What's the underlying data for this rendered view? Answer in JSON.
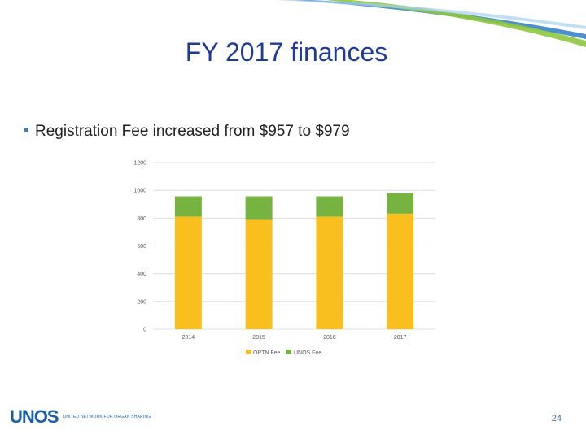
{
  "slide": {
    "title": "FY 2017 finances",
    "bullet": "Registration Fee increased from $957 to $979",
    "page_number": "24",
    "logo_text": "UNOS",
    "logo_tagline": "UNITED NETWORK FOR ORGAN SHARING"
  },
  "colors": {
    "title": "#1f3b9a",
    "optn": "#f9bf1e",
    "unos": "#76b340",
    "swoosh_blue": "#2d7cc4",
    "swoosh_green": "#8dc63f"
  },
  "chart_data": {
    "type": "bar",
    "stacked": true,
    "categories": [
      "2014",
      "2015",
      "2016",
      "2017"
    ],
    "series": [
      {
        "name": "OPTN Fee",
        "values": [
          811,
          792,
          811,
          832
        ],
        "color": "#f9bf1e"
      },
      {
        "name": "UNOS Fee",
        "values": [
          146,
          165,
          146,
          147
        ],
        "color": "#76b340"
      }
    ],
    "ylim": [
      0,
      1200
    ],
    "yticks": [
      "0",
      "200",
      "400",
      "600",
      "800",
      "1000",
      "1200"
    ],
    "grid": true,
    "legend_position": "bottom",
    "title": "",
    "xlabel": "",
    "ylabel": ""
  }
}
